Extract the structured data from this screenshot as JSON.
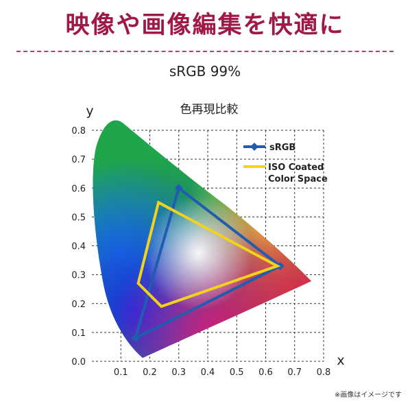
{
  "header": {
    "headline": "映像や画像編集を快適に",
    "subtitle": "sRGB 99%",
    "footnote": "※画像はイメージです"
  },
  "colors": {
    "headline": "#a01848",
    "srgb": "#1f5db0",
    "iso": "#f2d21a"
  },
  "chart_data": {
    "type": "scatter",
    "title": "色再現比較",
    "xlabel": "x",
    "ylabel": "y",
    "xlim": [
      0,
      0.8
    ],
    "ylim": [
      0,
      0.8
    ],
    "x_ticks": [
      "0.1",
      "0.2",
      "0.3",
      "0.4",
      "0.5",
      "0.6",
      "0.7",
      "0.8"
    ],
    "y_ticks": [
      "0.0",
      "0.1",
      "0.2",
      "0.3",
      "0.4",
      "0.5",
      "0.6",
      "0.7",
      "0.8"
    ],
    "grid": true,
    "legend_position": "top-right",
    "series": [
      {
        "name": "sRGB",
        "line_color": "#1f5db0",
        "points": [
          [
            0.3,
            0.6
          ],
          [
            0.65,
            0.33
          ],
          [
            0.15,
            0.08
          ]
        ]
      },
      {
        "name": "ISO Coated Color Space",
        "line_color": "#f2d21a",
        "points": [
          [
            0.23,
            0.55
          ],
          [
            0.64,
            0.33
          ],
          [
            0.24,
            0.19
          ],
          [
            0.16,
            0.27
          ]
        ]
      }
    ],
    "legend_labels": [
      {
        "lines": [
          "sRGB"
        ]
      },
      {
        "lines": [
          "ISO Coated",
          "Color Space"
        ]
      }
    ]
  }
}
